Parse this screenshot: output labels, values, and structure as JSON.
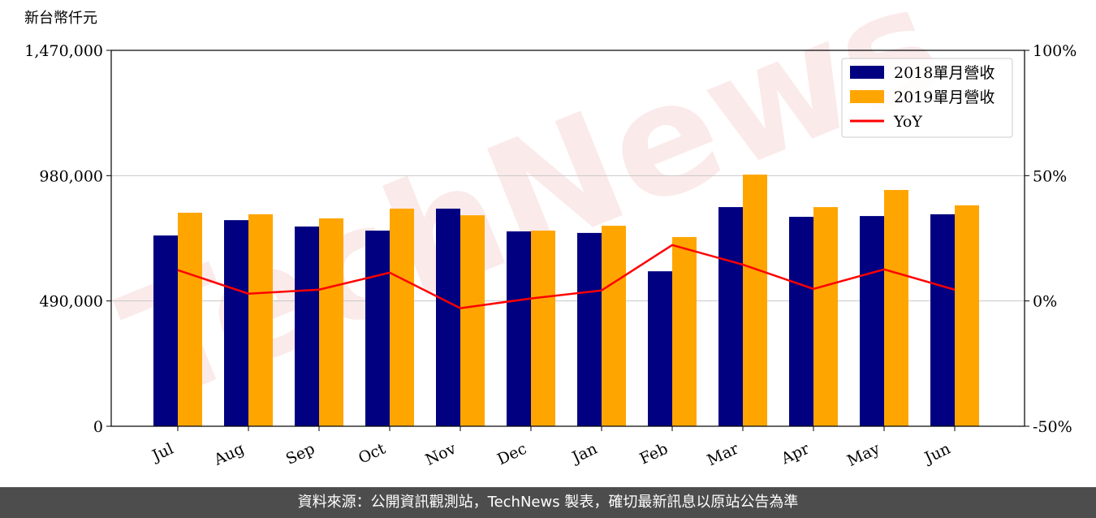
{
  "chart_data": {
    "type": "bar_line",
    "y_axis_label": "新台幣仟元",
    "watermark": "TechNews",
    "categories": [
      "Jul",
      "Aug",
      "Sep",
      "Oct",
      "Nov",
      "Dec",
      "Jan",
      "Feb",
      "Mar",
      "Apr",
      "May",
      "Jun"
    ],
    "series": [
      {
        "name": "2018單月營收",
        "color": "#000080",
        "values": [
          746000,
          806000,
          781000,
          765000,
          851000,
          762000,
          756000,
          606000,
          857000,
          819000,
          822000,
          829000
        ]
      },
      {
        "name": "2019單月營收",
        "color": "#ffa500",
        "values": [
          835000,
          829000,
          813000,
          851000,
          825000,
          765000,
          784000,
          740000,
          984000,
          857000,
          924000,
          864000
        ]
      },
      {
        "name": "YoY",
        "color": "#ff0000",
        "axis": "y2",
        "values": [
          12.3,
          2.9,
          4.5,
          11.3,
          -2.9,
          1.0,
          4.2,
          22.3,
          14.5,
          4.8,
          12.6,
          4.5
        ]
      }
    ],
    "ylim": [
      0,
      1470000
    ],
    "yticks": [
      0,
      {
        "value": 490000,
        "label": "490,000"
      },
      {
        "value": 980000,
        "label": "980,000"
      },
      {
        "value": 1470000,
        "label": "1,470,000"
      }
    ],
    "y2lim": [
      -50,
      100
    ],
    "y2ticks": [
      {
        "value": -50,
        "label": "-50%"
      },
      {
        "value": 0,
        "label": "0%"
      },
      {
        "value": 50,
        "label": "50%"
      },
      {
        "value": 100,
        "label": "100%"
      }
    ],
    "grid": true,
    "legend": "upper right"
  },
  "footer": "資料來源：公開資訊觀測站，TechNews 製表，確切最新訊息以原站公告為準"
}
